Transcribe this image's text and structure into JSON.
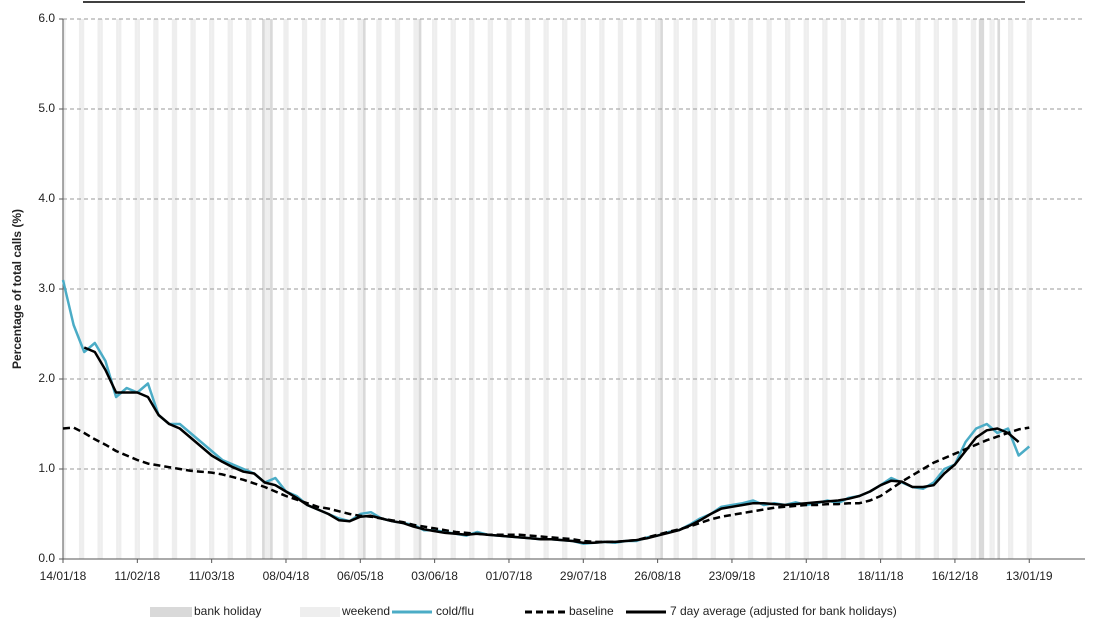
{
  "chart_data": {
    "type": "line",
    "y_label": "Percentage of total calls (%)",
    "x": [
      "14/01/18",
      "18/01/18",
      "22/01/18",
      "26/01/18",
      "30/01/18",
      "03/02/18",
      "07/02/18",
      "11/02/18",
      "15/02/18",
      "19/02/18",
      "23/02/18",
      "27/02/18",
      "03/03/18",
      "07/03/18",
      "11/03/18",
      "15/03/18",
      "19/03/18",
      "23/03/18",
      "27/03/18",
      "31/03/18",
      "04/04/18",
      "08/04/18",
      "12/04/18",
      "16/04/18",
      "20/04/18",
      "24/04/18",
      "28/04/18",
      "02/05/18",
      "06/05/18",
      "10/05/18",
      "14/05/18",
      "18/05/18",
      "22/05/18",
      "26/05/18",
      "30/05/18",
      "03/06/18",
      "07/06/18",
      "11/06/18",
      "15/06/18",
      "19/06/18",
      "23/06/18",
      "27/06/18",
      "01/07/18",
      "05/07/18",
      "09/07/18",
      "13/07/18",
      "17/07/18",
      "21/07/18",
      "25/07/18",
      "29/07/18",
      "02/08/18",
      "06/08/18",
      "10/08/18",
      "14/08/18",
      "18/08/18",
      "22/08/18",
      "26/08/18",
      "30/08/18",
      "03/09/18",
      "07/09/18",
      "11/09/18",
      "15/09/18",
      "19/09/18",
      "23/09/18",
      "27/09/18",
      "01/10/18",
      "05/10/18",
      "09/10/18",
      "13/10/18",
      "17/10/18",
      "21/10/18",
      "25/10/18",
      "29/10/18",
      "02/11/18",
      "06/11/18",
      "10/11/18",
      "14/11/18",
      "18/11/18",
      "22/11/18",
      "26/11/18",
      "30/11/18",
      "04/12/18",
      "08/12/18",
      "12/12/18",
      "16/12/18",
      "20/12/18",
      "24/12/18",
      "28/12/18",
      "01/01/19",
      "05/01/19",
      "09/01/19",
      "13/01/19"
    ],
    "series": [
      {
        "name": "cold/flu",
        "color": "#4bacc6",
        "dash": false,
        "values": [
          3.1,
          2.6,
          2.3,
          2.4,
          2.2,
          1.8,
          1.9,
          1.85,
          1.95,
          1.6,
          1.5,
          1.5,
          1.4,
          1.3,
          1.2,
          1.1,
          1.05,
          1.0,
          0.95,
          0.85,
          0.9,
          0.75,
          0.7,
          0.6,
          0.55,
          0.5,
          0.45,
          0.42,
          0.5,
          0.52,
          0.45,
          0.42,
          0.4,
          0.38,
          0.32,
          0.32,
          0.3,
          0.28,
          0.26,
          0.3,
          0.27,
          0.26,
          0.25,
          0.24,
          0.23,
          0.22,
          0.22,
          0.21,
          0.2,
          0.17,
          0.18,
          0.19,
          0.18,
          0.2,
          0.2,
          0.24,
          0.26,
          0.3,
          0.32,
          0.38,
          0.45,
          0.5,
          0.58,
          0.6,
          0.62,
          0.65,
          0.6,
          0.62,
          0.6,
          0.63,
          0.6,
          0.62,
          0.65,
          0.62,
          0.68,
          0.7,
          0.75,
          0.82,
          0.9,
          0.85,
          0.8,
          0.78,
          0.85,
          1.0,
          1.05,
          1.3,
          1.45,
          1.5,
          1.4,
          1.45,
          1.15,
          1.25
        ]
      },
      {
        "name": "baseline",
        "color": "#000000",
        "dash": true,
        "values": [
          1.45,
          1.46,
          1.4,
          1.33,
          1.27,
          1.2,
          1.15,
          1.1,
          1.06,
          1.04,
          1.02,
          1.0,
          0.98,
          0.97,
          0.96,
          0.94,
          0.91,
          0.88,
          0.84,
          0.8,
          0.75,
          0.7,
          0.66,
          0.62,
          0.58,
          0.56,
          0.53,
          0.5,
          0.48,
          0.47,
          0.45,
          0.43,
          0.41,
          0.38,
          0.36,
          0.34,
          0.32,
          0.3,
          0.29,
          0.28,
          0.27,
          0.27,
          0.27,
          0.27,
          0.26,
          0.25,
          0.24,
          0.23,
          0.22,
          0.2,
          0.19,
          0.19,
          0.19,
          0.2,
          0.21,
          0.24,
          0.27,
          0.3,
          0.33,
          0.36,
          0.4,
          0.44,
          0.47,
          0.49,
          0.51,
          0.53,
          0.55,
          0.57,
          0.58,
          0.59,
          0.6,
          0.6,
          0.61,
          0.61,
          0.62,
          0.62,
          0.65,
          0.7,
          0.78,
          0.86,
          0.93,
          1.0,
          1.07,
          1.12,
          1.17,
          1.22,
          1.27,
          1.32,
          1.36,
          1.4,
          1.44,
          1.46
        ]
      },
      {
        "name": "7 day average (adjusted for bank holidays)",
        "color": "#000000",
        "dash": false,
        "values": [
          null,
          null,
          2.35,
          2.3,
          2.1,
          1.85,
          1.85,
          1.85,
          1.8,
          1.6,
          1.5,
          1.45,
          1.35,
          1.25,
          1.15,
          1.08,
          1.02,
          0.97,
          0.95,
          0.85,
          0.82,
          0.75,
          0.68,
          0.6,
          0.55,
          0.5,
          0.43,
          0.42,
          0.47,
          0.48,
          0.45,
          0.42,
          0.4,
          0.36,
          0.33,
          0.31,
          0.29,
          0.28,
          0.27,
          0.28,
          0.27,
          0.26,
          0.25,
          0.24,
          0.23,
          0.22,
          0.22,
          0.21,
          0.2,
          0.18,
          0.18,
          0.19,
          0.19,
          0.2,
          0.21,
          0.23,
          0.26,
          0.29,
          0.32,
          0.37,
          0.43,
          0.5,
          0.56,
          0.58,
          0.6,
          0.62,
          0.62,
          0.61,
          0.6,
          0.61,
          0.62,
          0.63,
          0.64,
          0.65,
          0.67,
          0.7,
          0.75,
          0.82,
          0.87,
          0.86,
          0.8,
          0.8,
          0.82,
          0.95,
          1.05,
          1.2,
          1.35,
          1.43,
          1.45,
          1.4,
          1.3,
          null
        ]
      }
    ],
    "bank_holiday": {
      "name": "bank holiday",
      "color": "#d9d9d9",
      "dates": [
        "30/03/18",
        "02/04/18",
        "07/05/18",
        "28/05/18",
        "27/08/18",
        "25/12/18",
        "26/12/18",
        "01/01/19"
      ]
    },
    "weekend": {
      "name": "weekend",
      "color": "#eeeeee"
    },
    "xlim": [
      "14/01/18",
      "03/02/19"
    ],
    "xticks": [
      "14/01/18",
      "11/02/18",
      "11/03/18",
      "08/04/18",
      "06/05/18",
      "03/06/18",
      "01/07/18",
      "29/07/18",
      "26/08/18",
      "23/09/18",
      "21/10/18",
      "18/11/18",
      "16/12/18",
      "13/01/19"
    ],
    "ylim": [
      0,
      6
    ],
    "yticks": [
      {
        "value": 0,
        "label": "0.0"
      },
      {
        "value": 1,
        "label": "1.0"
      },
      {
        "value": 2,
        "label": "2.0"
      },
      {
        "value": 3,
        "label": "3.0"
      },
      {
        "value": 4,
        "label": "4.0"
      },
      {
        "value": 5,
        "label": "5.0"
      },
      {
        "value": 6,
        "label": "6.0"
      }
    ],
    "grid": true
  }
}
